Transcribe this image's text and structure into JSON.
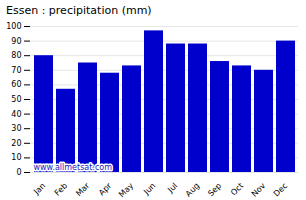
{
  "chart_data": {
    "type": "bar",
    "title": "Essen : precipitation (mm)",
    "categories": [
      "Jan",
      "Feb",
      "Mar",
      "Apr",
      "May",
      "Jun",
      "Jul",
      "Aug",
      "Sep",
      "Oct",
      "Nov",
      "Dec"
    ],
    "values": [
      80,
      57,
      75,
      68,
      73,
      97,
      88,
      88,
      76,
      73,
      70,
      90
    ],
    "color": "#0000CC",
    "ylim": [
      0,
      100
    ],
    "yticks": [
      0,
      10,
      20,
      30,
      40,
      50,
      60,
      70,
      80,
      90,
      100
    ],
    "grid": true,
    "annotations": [
      {
        "text": "www.allmetsat.com",
        "color": "#2222bb"
      }
    ]
  }
}
